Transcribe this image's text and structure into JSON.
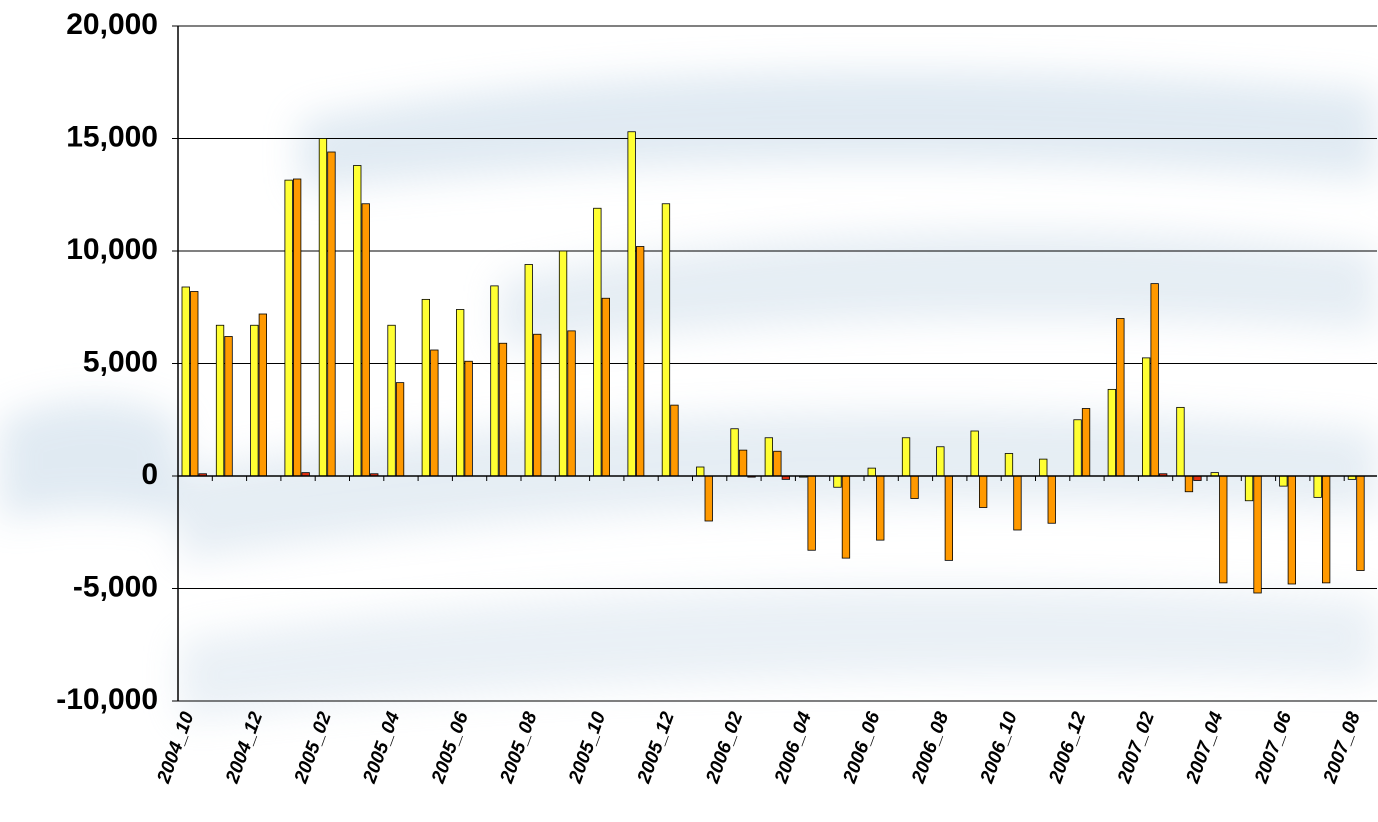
{
  "chart_data": {
    "type": "bar",
    "categories": [
      "2004_10",
      null,
      "2004_12",
      null,
      "2005_02",
      null,
      "2005_04",
      null,
      "2005_06",
      null,
      "2005_08",
      null,
      "2005_10",
      null,
      "2005_12",
      null,
      "2006_02",
      null,
      "2006_04",
      null,
      "2006_06",
      null,
      "2006_08",
      null,
      "2006_10",
      null,
      "2006_12",
      null,
      "2007_02",
      null,
      "2007_04",
      null,
      "2007_06",
      null,
      "2007_08"
    ],
    "series": [
      {
        "color": "#ffff33",
        "values": [
          8400,
          6700,
          6700,
          13150,
          15000,
          13800,
          6700,
          7850,
          7400,
          8450,
          9400,
          10000,
          11900,
          15300,
          12100,
          400,
          2100,
          1700,
          -50,
          -500,
          350,
          1700,
          1300,
          2000,
          1000,
          750,
          2500,
          3850,
          5250,
          3050,
          150,
          -1100,
          -450,
          -950,
          -150
        ]
      },
      {
        "color": "#ff9900",
        "values": [
          8200,
          6200,
          7200,
          13200,
          14400,
          12100,
          4150,
          5600,
          5100,
          5900,
          6300,
          6450,
          7900,
          10200,
          3150,
          -2000,
          1150,
          1100,
          -3300,
          -3650,
          -2850,
          -1000,
          -3750,
          -1400,
          -2400,
          -2100,
          3000,
          7000,
          8550,
          -700,
          -4750,
          -5200,
          -4800,
          -4750,
          -4200
        ]
      },
      {
        "color": "#e03010",
        "values": [
          100,
          0,
          0,
          150,
          0,
          100,
          0,
          0,
          0,
          0,
          0,
          0,
          0,
          0,
          0,
          0,
          -50,
          -150,
          0,
          0,
          0,
          0,
          0,
          0,
          0,
          0,
          0,
          0,
          100,
          -200,
          0,
          0,
          0,
          0,
          0
        ]
      }
    ],
    "ylim": [
      -10000,
      20000
    ],
    "yticks": [
      {
        "value": -10000,
        "label": "-10,000"
      },
      {
        "value": -5000,
        "label": "-5,000"
      },
      0,
      {
        "value": 5000,
        "label": "5,000"
      },
      {
        "value": 10000,
        "label": "10,000"
      },
      {
        "value": 15000,
        "label": "15,000"
      },
      {
        "value": 20000,
        "label": "20,000"
      }
    ],
    "grid": true
  }
}
